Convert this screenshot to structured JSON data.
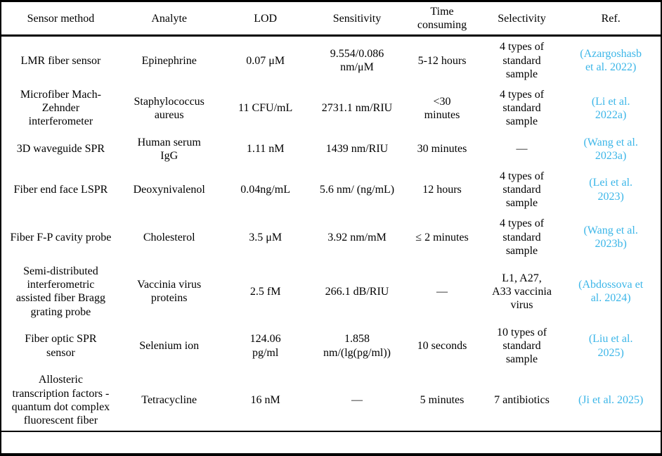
{
  "figure": {
    "kind": "paper-comparison-table",
    "text_color": "#000000",
    "border_color": "#000000",
    "ref_color": "#3cb6e8"
  },
  "table": {
    "columns": [
      "Sensor method",
      "Analyte",
      "LOD",
      "Sensitivity",
      "Time\nconsuming",
      "Selectivity",
      "Ref."
    ],
    "rows": [
      [
        "LMR fiber sensor",
        "Epinephrine",
        "0.07 μM",
        "9.554/0.086\nnm/μM",
        "5-12 hours",
        "4 types of\nstandard\nsample",
        "(Azargoshasb\net al. 2022)"
      ],
      [
        "Microfiber Mach-\nZehnder\ninterferometer",
        "Staphylococcus\naureus",
        "11 CFU/mL",
        "2731.1 nm/RIU",
        "<30\nminutes",
        "4 types of\nstandard\nsample",
        "(Li et al.\n2022a)"
      ],
      [
        "3D waveguide SPR",
        "Human serum\nIgG",
        "1.11 nM",
        "1439 nm/RIU",
        "30 minutes",
        "—",
        "(Wang et al.\n2023a)"
      ],
      [
        "Fiber end face LSPR",
        "Deoxynivalenol",
        "0.04ng/mL",
        "5.6 nm/ (ng/mL)",
        "12 hours",
        "4 types of\nstandard\nsample",
        "(Lei et al.\n2023)"
      ],
      [
        "Fiber F-P cavity probe",
        "Cholesterol",
        "3.5 μM",
        "3.92 nm/mM",
        "≤ 2 minutes",
        "4 types of\nstandard\nsample",
        "(Wang et al.\n2023b)"
      ],
      [
        "Semi-distributed\ninterferometric\nassisted fiber Bragg\ngrating probe",
        "Vaccinia virus\nproteins",
        "2.5 fM",
        "266.1 dB/RIU",
        "—",
        "L1, A27,\nA33 vaccinia\nvirus",
        "(Abdossova et\nal. 2024)"
      ],
      [
        "Fiber optic SPR\nsensor",
        "Selenium ion",
        "124.06\npg/ml",
        "1.858\nnm/(lg(pg/ml))",
        "10 seconds",
        "10 types of\nstandard\nsample",
        "(Liu et al.\n2025)"
      ],
      [
        "Allosteric\ntranscription factors -\nquantum dot complex\nfluorescent fiber",
        "Tetracycline",
        "16 nM",
        "—",
        "5 minutes",
        "7 antibiotics",
        "(Ji et al. 2025)"
      ]
    ]
  }
}
